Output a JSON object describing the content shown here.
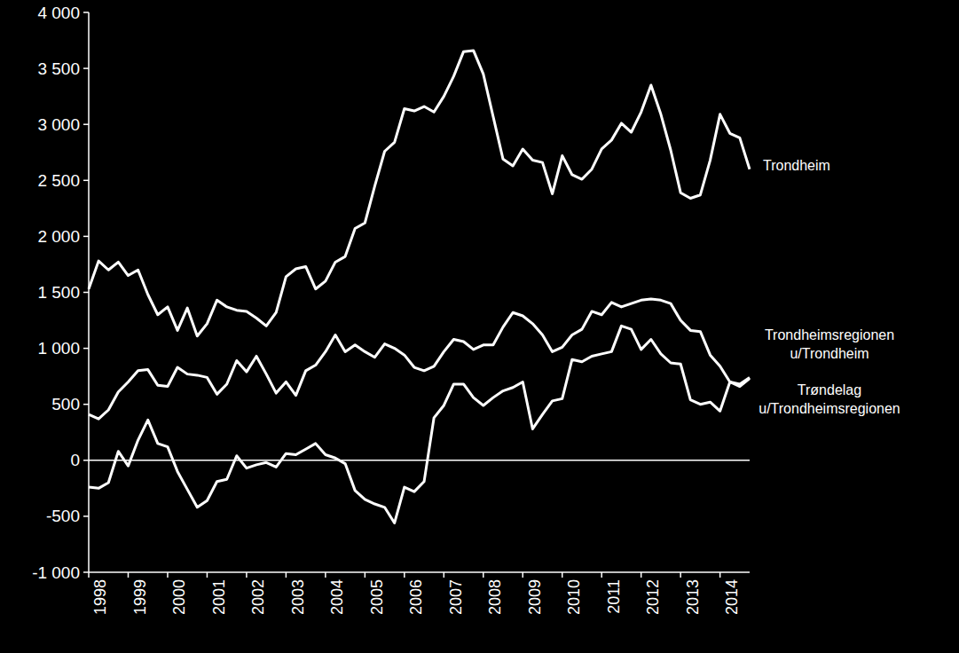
{
  "chart_data": {
    "type": "line",
    "categories": [
      "1998",
      null,
      null,
      null,
      "1999",
      null,
      null,
      null,
      "2000",
      null,
      null,
      null,
      "2001",
      null,
      null,
      null,
      "2002",
      null,
      null,
      null,
      "2003",
      null,
      null,
      null,
      "2004",
      null,
      null,
      null,
      "2005",
      null,
      null,
      null,
      "2006",
      null,
      null,
      null,
      "2007",
      null,
      null,
      null,
      "2008",
      null,
      null,
      null,
      "2009",
      null,
      null,
      null,
      "2010",
      null,
      null,
      null,
      "2011",
      null,
      null,
      null,
      "2012",
      null,
      null,
      null,
      "2013",
      null,
      null,
      null,
      "2014",
      null,
      null,
      null
    ],
    "series": [
      {
        "name": "Trondheim",
        "color": "#ffffff",
        "values": [
          1530,
          1780,
          1700,
          1770,
          1650,
          1700,
          1480,
          1300,
          1370,
          1160,
          1360,
          1110,
          1220,
          1430,
          1370,
          1340,
          1330,
          1270,
          1200,
          1320,
          1640,
          1710,
          1730,
          1530,
          1600,
          1770,
          1820,
          2070,
          2120,
          2450,
          2760,
          2840,
          3140,
          3120,
          3160,
          3110,
          3250,
          3430,
          3650,
          3660,
          3450,
          3070,
          2690,
          2630,
          2780,
          2680,
          2660,
          2380,
          2720,
          2550,
          2510,
          2600,
          2780,
          2860,
          3010,
          2930,
          3110,
          3350,
          3090,
          2770,
          2390,
          2340,
          2370,
          2680,
          3090,
          2920,
          2880,
          2600
        ]
      },
      {
        "name": "Trondheimsregionen u/Trondheim",
        "color": "#ffffff",
        "values": [
          410,
          370,
          450,
          610,
          700,
          800,
          810,
          670,
          660,
          830,
          770,
          760,
          740,
          590,
          680,
          890,
          790,
          930,
          770,
          600,
          700,
          580,
          800,
          850,
          970,
          1120,
          970,
          1030,
          970,
          920,
          1040,
          1000,
          940,
          830,
          800,
          840,
          970,
          1080,
          1060,
          990,
          1030,
          1030,
          1190,
          1320,
          1290,
          1220,
          1120,
          970,
          1010,
          1120,
          1170,
          1330,
          1300,
          1410,
          1370,
          1400,
          1430,
          1440,
          1430,
          1400,
          1250,
          1160,
          1150,
          940,
          840,
          700,
          660,
          730
        ]
      },
      {
        "name": "Trøndelag u/Trondheimsregionen",
        "color": "#ffffff",
        "values": [
          -240,
          -250,
          -200,
          80,
          -50,
          180,
          360,
          150,
          120,
          -100,
          -260,
          -420,
          -360,
          -190,
          -170,
          40,
          -70,
          -40,
          -20,
          -60,
          60,
          50,
          100,
          150,
          50,
          20,
          -30,
          -270,
          -350,
          -390,
          -420,
          -560,
          -240,
          -280,
          -190,
          380,
          490,
          680,
          680,
          560,
          490,
          560,
          620,
          650,
          700,
          280,
          410,
          530,
          550,
          900,
          880,
          930,
          950,
          970,
          1200,
          1170,
          990,
          1080,
          950,
          870,
          860,
          540,
          500,
          520,
          440,
          700,
          680,
          740
        ]
      }
    ],
    "ylim": [
      -1000,
      4000
    ],
    "yticks": [
      {
        "value": -1000,
        "label": "-1 000"
      },
      {
        "value": -500,
        "label": "-500"
      },
      0,
      500,
      {
        "value": 1000,
        "label": "1 000"
      },
      {
        "value": 1500,
        "label": "1 500"
      },
      {
        "value": 2000,
        "label": "2 000"
      },
      {
        "value": 2500,
        "label": "2 500"
      },
      {
        "value": 3000,
        "label": "3 000"
      },
      {
        "value": 3500,
        "label": "3 500"
      },
      {
        "value": 4000,
        "label": "4 000"
      }
    ],
    "grid": false
  }
}
